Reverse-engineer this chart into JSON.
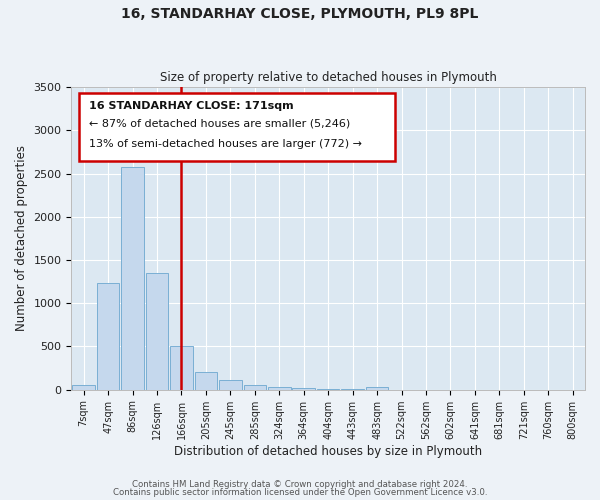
{
  "title": "16, STANDARHAY CLOSE, PLYMOUTH, PL9 8PL",
  "subtitle": "Size of property relative to detached houses in Plymouth",
  "xlabel": "Distribution of detached houses by size in Plymouth",
  "ylabel": "Number of detached properties",
  "bar_color": "#c5d8ed",
  "bar_edge_color": "#7aafd4",
  "background_color": "#dce8f2",
  "grid_color": "#ffffff",
  "annotation_box_color": "#cc0000",
  "vline_color": "#cc0000",
  "annotation_line1": "16 STANDARHAY CLOSE: 171sqm",
  "annotation_line2": "← 87% of detached houses are smaller (5,246)",
  "annotation_line3": "13% of semi-detached houses are larger (772) →",
  "footer_line1": "Contains HM Land Registry data © Crown copyright and database right 2024.",
  "footer_line2": "Contains public sector information licensed under the Open Government Licence v3.0.",
  "categories": [
    "7sqm",
    "47sqm",
    "86sqm",
    "126sqm",
    "166sqm",
    "205sqm",
    "245sqm",
    "285sqm",
    "324sqm",
    "364sqm",
    "404sqm",
    "443sqm",
    "483sqm",
    "522sqm",
    "562sqm",
    "602sqm",
    "641sqm",
    "681sqm",
    "721sqm",
    "760sqm",
    "800sqm"
  ],
  "values": [
    50,
    1230,
    2580,
    1350,
    500,
    200,
    110,
    50,
    30,
    15,
    5,
    5,
    28,
    0,
    0,
    0,
    0,
    0,
    0,
    0,
    0
  ],
  "ylim": [
    0,
    3500
  ],
  "yticks": [
    0,
    500,
    1000,
    1500,
    2000,
    2500,
    3000,
    3500
  ],
  "fig_width": 6.0,
  "fig_height": 5.0,
  "dpi": 100
}
